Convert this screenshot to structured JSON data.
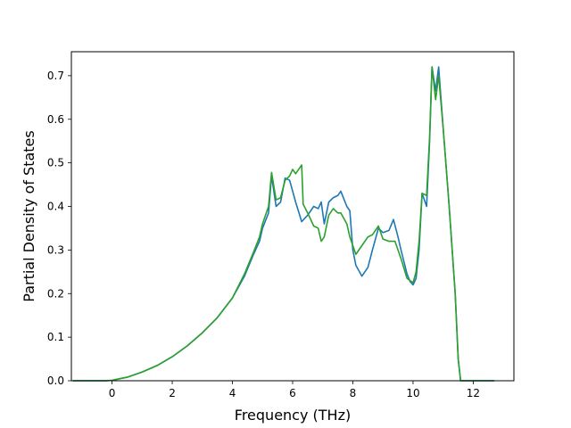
{
  "chart_data": {
    "type": "line",
    "title": "",
    "xlabel": "Frequency (THz)",
    "ylabel": "Partial Density of States",
    "xlim": [
      -1.35,
      13.35
    ],
    "ylim": [
      0.0,
      0.755
    ],
    "x_ticks": [
      0,
      2,
      4,
      6,
      8,
      10,
      12
    ],
    "y_ticks": [
      0.0,
      0.1,
      0.2,
      0.3,
      0.4,
      0.5,
      0.6,
      0.7
    ],
    "x_tick_labels": [
      "0",
      "2",
      "4",
      "6",
      "8",
      "10",
      "12"
    ],
    "y_tick_labels": [
      "0.0",
      "0.1",
      "0.2",
      "0.3",
      "0.4",
      "0.5",
      "0.6",
      "0.7"
    ],
    "grid": false,
    "legend": "none",
    "series": [
      {
        "color": "#1f77b4",
        "points": [
          [
            -1.3,
            0.0
          ],
          [
            -0.2,
            0.0
          ],
          [
            0.0,
            0.001
          ],
          [
            0.5,
            0.008
          ],
          [
            1.0,
            0.02
          ],
          [
            1.5,
            0.035
          ],
          [
            2.0,
            0.055
          ],
          [
            2.5,
            0.08
          ],
          [
            3.0,
            0.11
          ],
          [
            3.5,
            0.145
          ],
          [
            4.0,
            0.19
          ],
          [
            4.4,
            0.24
          ],
          [
            4.7,
            0.29
          ],
          [
            4.9,
            0.32
          ],
          [
            5.0,
            0.35
          ],
          [
            5.2,
            0.385
          ],
          [
            5.3,
            0.47
          ],
          [
            5.45,
            0.4
          ],
          [
            5.6,
            0.41
          ],
          [
            5.75,
            0.465
          ],
          [
            5.9,
            0.46
          ],
          [
            6.1,
            0.41
          ],
          [
            6.3,
            0.365
          ],
          [
            6.5,
            0.38
          ],
          [
            6.7,
            0.4
          ],
          [
            6.85,
            0.395
          ],
          [
            6.95,
            0.41
          ],
          [
            7.05,
            0.36
          ],
          [
            7.2,
            0.41
          ],
          [
            7.35,
            0.42
          ],
          [
            7.5,
            0.425
          ],
          [
            7.6,
            0.435
          ],
          [
            7.8,
            0.4
          ],
          [
            7.9,
            0.39
          ],
          [
            8.0,
            0.3
          ],
          [
            8.1,
            0.265
          ],
          [
            8.3,
            0.24
          ],
          [
            8.5,
            0.26
          ],
          [
            8.65,
            0.3
          ],
          [
            8.85,
            0.35
          ],
          [
            9.0,
            0.34
          ],
          [
            9.2,
            0.345
          ],
          [
            9.35,
            0.37
          ],
          [
            9.5,
            0.33
          ],
          [
            9.6,
            0.3
          ],
          [
            9.8,
            0.245
          ],
          [
            9.9,
            0.228
          ],
          [
            10.0,
            0.22
          ],
          [
            10.1,
            0.235
          ],
          [
            10.2,
            0.3
          ],
          [
            10.3,
            0.43
          ],
          [
            10.45,
            0.4
          ],
          [
            10.55,
            0.55
          ],
          [
            10.63,
            0.72
          ],
          [
            10.75,
            0.665
          ],
          [
            10.85,
            0.72
          ],
          [
            11.0,
            0.58
          ],
          [
            11.2,
            0.4
          ],
          [
            11.4,
            0.2
          ],
          [
            11.5,
            0.05
          ],
          [
            11.58,
            0.0
          ],
          [
            12.7,
            0.0
          ]
        ]
      },
      {
        "color": "#2ca02c",
        "points": [
          [
            -1.3,
            0.0
          ],
          [
            -0.2,
            0.0
          ],
          [
            0.0,
            0.001
          ],
          [
            0.5,
            0.008
          ],
          [
            1.0,
            0.02
          ],
          [
            1.5,
            0.035
          ],
          [
            2.0,
            0.055
          ],
          [
            2.5,
            0.08
          ],
          [
            3.0,
            0.11
          ],
          [
            3.5,
            0.145
          ],
          [
            4.0,
            0.19
          ],
          [
            4.4,
            0.245
          ],
          [
            4.7,
            0.295
          ],
          [
            4.9,
            0.33
          ],
          [
            5.0,
            0.36
          ],
          [
            5.2,
            0.4
          ],
          [
            5.3,
            0.478
          ],
          [
            5.45,
            0.415
          ],
          [
            5.6,
            0.42
          ],
          [
            5.75,
            0.46
          ],
          [
            5.9,
            0.47
          ],
          [
            6.0,
            0.485
          ],
          [
            6.1,
            0.475
          ],
          [
            6.3,
            0.495
          ],
          [
            6.35,
            0.405
          ],
          [
            6.5,
            0.385
          ],
          [
            6.7,
            0.355
          ],
          [
            6.85,
            0.35
          ],
          [
            6.95,
            0.32
          ],
          [
            7.05,
            0.33
          ],
          [
            7.2,
            0.38
          ],
          [
            7.35,
            0.395
          ],
          [
            7.5,
            0.385
          ],
          [
            7.6,
            0.385
          ],
          [
            7.8,
            0.36
          ],
          [
            7.9,
            0.33
          ],
          [
            8.1,
            0.29
          ],
          [
            8.3,
            0.31
          ],
          [
            8.5,
            0.33
          ],
          [
            8.65,
            0.335
          ],
          [
            8.85,
            0.355
          ],
          [
            9.0,
            0.325
          ],
          [
            9.2,
            0.32
          ],
          [
            9.4,
            0.32
          ],
          [
            9.6,
            0.28
          ],
          [
            9.8,
            0.235
          ],
          [
            9.9,
            0.23
          ],
          [
            10.0,
            0.225
          ],
          [
            10.1,
            0.25
          ],
          [
            10.2,
            0.32
          ],
          [
            10.3,
            0.43
          ],
          [
            10.45,
            0.425
          ],
          [
            10.55,
            0.56
          ],
          [
            10.63,
            0.72
          ],
          [
            10.75,
            0.645
          ],
          [
            10.85,
            0.7
          ],
          [
            11.0,
            0.58
          ],
          [
            11.2,
            0.4
          ],
          [
            11.4,
            0.2
          ],
          [
            11.5,
            0.05
          ],
          [
            11.58,
            0.0
          ],
          [
            12.7,
            0.0
          ]
        ]
      }
    ]
  }
}
